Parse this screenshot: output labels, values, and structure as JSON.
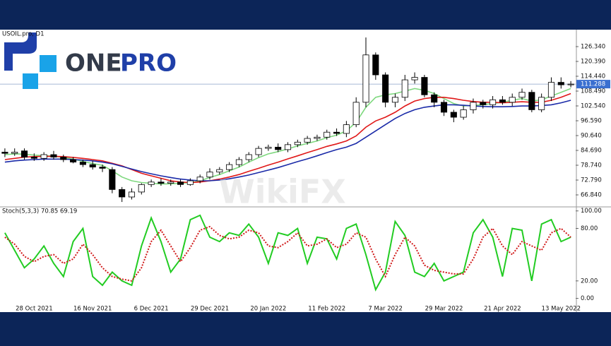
{
  "branding": {
    "logo_left": "ONE",
    "logo_right": "PRO",
    "watermark": "WikiFX"
  },
  "chart_data": [
    {
      "type": "candlestick",
      "title": "USOIL.pro, D1",
      "categories": [
        null,
        null,
        null,
        "28 Oct 2021",
        null,
        null,
        null,
        null,
        null,
        "16 Nov 2021",
        null,
        null,
        null,
        null,
        null,
        "6 Dec 2021",
        null,
        null,
        null,
        null,
        null,
        "29 Dec 2021",
        null,
        null,
        null,
        null,
        null,
        "20 Jan 2022",
        null,
        null,
        null,
        null,
        null,
        "11 Feb 2022",
        null,
        null,
        null,
        null,
        null,
        "7 Mar 2022",
        null,
        null,
        null,
        null,
        null,
        "29 Mar 2022",
        null,
        null,
        null,
        null,
        null,
        "21 Apr 2022",
        null,
        null,
        null,
        null,
        null,
        "13 May 2022",
        null
      ],
      "open": [
        84,
        83.5,
        84.5,
        82,
        81.5,
        83,
        82,
        81,
        80,
        79,
        78,
        77,
        69,
        66,
        68,
        71,
        72,
        71.5,
        72,
        71,
        72.5,
        74,
        76,
        77,
        79,
        81,
        83,
        85.5,
        86,
        85,
        87,
        88,
        89.5,
        90,
        92,
        91.5,
        95,
        104,
        123,
        115,
        104,
        106,
        113,
        114,
        107,
        104,
        100,
        98,
        101,
        104,
        103,
        105,
        104,
        106,
        108,
        101,
        106,
        112,
        111
      ],
      "high": [
        85.5,
        85.5,
        85.5,
        83.5,
        84,
        84.5,
        83,
        82,
        81,
        80.5,
        79,
        78,
        70,
        69.5,
        71.5,
        73,
        73.5,
        73,
        73,
        73.5,
        75,
        77.5,
        78,
        80,
        82,
        84,
        86.5,
        87,
        87.5,
        88,
        89,
        90.5,
        91,
        93,
        93.5,
        96.5,
        106,
        130,
        124,
        116,
        107.5,
        115,
        116,
        115,
        108,
        105,
        101,
        102.5,
        105.5,
        105,
        106.5,
        106.5,
        107.5,
        109.5,
        109,
        107.5,
        114,
        114,
        112.5
      ],
      "low": [
        82,
        82.5,
        81,
        80.5,
        80.5,
        81,
        80,
        79.5,
        78,
        77,
        76,
        67.5,
        64,
        65,
        67,
        70,
        70.5,
        70.5,
        70,
        70.5,
        71.5,
        73,
        75,
        76,
        78,
        80,
        82,
        84.5,
        84,
        84,
        86,
        87,
        88.5,
        89,
        90.5,
        90,
        94,
        102,
        113,
        102,
        102,
        104.5,
        111.5,
        106,
        102,
        98.5,
        96,
        97,
        99.5,
        101.5,
        101.5,
        103,
        102.5,
        105,
        100,
        100,
        104.5,
        109.5,
        110
      ],
      "close": [
        83.5,
        84,
        82,
        81.5,
        83,
        82,
        81,
        80,
        79,
        78,
        77.5,
        69,
        66,
        68,
        71,
        72,
        71.5,
        72,
        71,
        72.5,
        74,
        76,
        77,
        79,
        81,
        83,
        85.5,
        86,
        85,
        87,
        88,
        89.5,
        90,
        92,
        91.5,
        95,
        104,
        123,
        115,
        104,
        106,
        113,
        114,
        107,
        104,
        100,
        98,
        101,
        104,
        103,
        105,
        104,
        106,
        108,
        101,
        106,
        112,
        111,
        111.3
      ],
      "up_color": "#ffffff",
      "down_color": "#000000",
      "series": [
        {
          "color": "#7ed87e",
          "values": [
            83,
            83.3,
            83.2,
            82.8,
            82.6,
            82.4,
            81.9,
            81.2,
            80.3,
            79.4,
            78.7,
            76.5,
            74,
            72.5,
            71.8,
            71.5,
            71.2,
            71.3,
            71.5,
            71.8,
            72.5,
            73.8,
            75,
            76.5,
            78,
            80,
            81.8,
            83.3,
            84.2,
            85.3,
            86.5,
            87.5,
            88.5,
            89.8,
            90.8,
            92.5,
            96,
            102,
            106,
            107,
            107.5,
            108.5,
            109.5,
            108.8,
            107.5,
            105.5,
            103.5,
            102.5,
            102.8,
            103,
            103.5,
            104,
            104.8,
            105.5,
            104.5,
            105,
            106.5,
            108,
            109.5
          ]
        },
        {
          "color": "#e01818",
          "values": [
            81,
            81.5,
            82,
            82.2,
            82.3,
            82.3,
            82.2,
            81.9,
            81.5,
            81,
            80.5,
            79.5,
            78.5,
            77,
            75.5,
            74.5,
            73.5,
            72.5,
            72,
            71.8,
            72,
            72.5,
            73.2,
            74,
            75,
            76.3,
            77.5,
            78.8,
            80,
            81.3,
            82.5,
            83.8,
            85,
            86.3,
            87.3,
            88.5,
            90.5,
            94,
            96.5,
            98,
            100,
            102.5,
            104.5,
            105.5,
            106,
            106,
            105.5,
            104.8,
            104.3,
            104,
            104,
            103.8,
            104,
            104.2,
            104,
            104,
            104.8,
            106,
            107.5
          ]
        },
        {
          "color": "#1a2aa8",
          "values": [
            80,
            80.5,
            80.8,
            81,
            81.2,
            81.2,
            81.2,
            81,
            80.8,
            80.5,
            80,
            79.3,
            78.3,
            77.2,
            76.2,
            75.3,
            74.5,
            73.8,
            73.2,
            72.8,
            72.5,
            72.5,
            72.8,
            73.3,
            74,
            74.8,
            75.8,
            76.8,
            77.8,
            79,
            80.2,
            81.3,
            82.5,
            83.8,
            85,
            86,
            87.5,
            90,
            92.5,
            95,
            97.5,
            99.5,
            101,
            102,
            102.5,
            103,
            103,
            102.8,
            102.5,
            102.3,
            102.2,
            102.2,
            102.3,
            102.5,
            102.5,
            102.7,
            103,
            103.8,
            104.8
          ]
        }
      ],
      "current_price": {
        "value": 111.288,
        "label": "111.288"
      },
      "current_price_color": "#3a6fd0",
      "ylim": [
        62.31,
        132.57
      ],
      "yticks": [
        {
          "value": 126.34,
          "label": "126.340"
        },
        {
          "value": 120.39,
          "label": "120.390"
        },
        {
          "value": 114.44,
          "label": "114.440"
        },
        {
          "value": 108.49,
          "label": "108.490"
        },
        {
          "value": 102.54,
          "label": "102.540"
        },
        {
          "value": 96.59,
          "label": "96.590"
        },
        {
          "value": 90.64,
          "label": "90.640"
        },
        {
          "value": 84.69,
          "label": "84.690"
        },
        {
          "value": 78.74,
          "label": "78.740"
        },
        {
          "value": 72.79,
          "label": "72.790"
        },
        {
          "value": 66.84,
          "label": "66.840"
        }
      ]
    },
    {
      "type": "line",
      "title": "Stoch(5,3,3) 70.85 69.19",
      "series": [
        {
          "color": "#22cc22",
          "style": "solid",
          "values": [
            75,
            55,
            35,
            45,
            60,
            40,
            25,
            65,
            80,
            25,
            15,
            30,
            20,
            15,
            60,
            92,
            65,
            30,
            45,
            90,
            95,
            70,
            65,
            75,
            72,
            85,
            70,
            40,
            75,
            72,
            80,
            40,
            70,
            68,
            45,
            80,
            85,
            50,
            10,
            30,
            88,
            72,
            30,
            25,
            40,
            20,
            25,
            30,
            75,
            90,
            70,
            25,
            80,
            78,
            20,
            85,
            90,
            65,
            70
          ]
        },
        {
          "color": "#d01818",
          "style": "dotted",
          "values": [
            70,
            62,
            48,
            42,
            48,
            50,
            40,
            45,
            62,
            50,
            35,
            25,
            22,
            20,
            35,
            65,
            78,
            60,
            42,
            58,
            78,
            82,
            72,
            68,
            70,
            78,
            75,
            60,
            58,
            65,
            75,
            60,
            62,
            68,
            58,
            62,
            75,
            70,
            45,
            25,
            50,
            70,
            60,
            38,
            32,
            30,
            28,
            28,
            45,
            70,
            80,
            60,
            50,
            65,
            60,
            55,
            75,
            80,
            70
          ]
        }
      ],
      "ylim": [
        -7.6,
        103.8
      ],
      "yticks": [
        {
          "value": 100,
          "label": "100.00"
        },
        {
          "value": 80,
          "label": "80.00"
        },
        {
          "value": 20,
          "label": "20.00"
        },
        {
          "value": 0,
          "label": "0.00"
        }
      ]
    }
  ]
}
